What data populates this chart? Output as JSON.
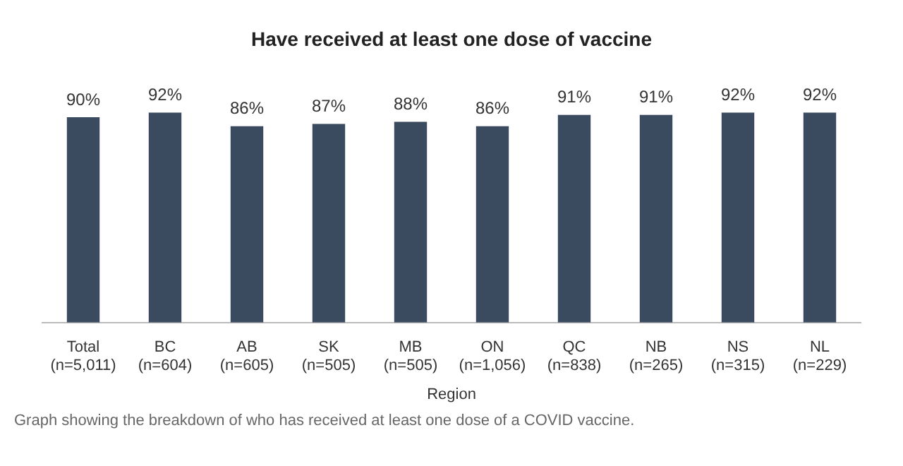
{
  "chart_data": {
    "type": "bar",
    "title": "Have received at least one dose of vaccine",
    "categories": [
      "Total (n=5,011)",
      "BC (n=604)",
      "AB (n=605)",
      "SK (n=505)",
      "MB (n=505)",
      "ON (n=1,056)",
      "QC (n=838)",
      "NB (n=265)",
      "NS (n=315)",
      "NL (n=229)"
    ],
    "values": [
      90,
      92,
      86,
      87,
      88,
      86,
      91,
      91,
      92,
      92
    ],
    "value_labels": [
      "90%",
      "92%",
      "86%",
      "87%",
      "88%",
      "86%",
      "91%",
      "91%",
      "92%",
      "92%"
    ],
    "color": "#3a4a5f",
    "xlabel": "Region",
    "annotations": [
      "Graph showing the breakdown of who has received at least one dose of a COVID vaccine."
    ]
  }
}
